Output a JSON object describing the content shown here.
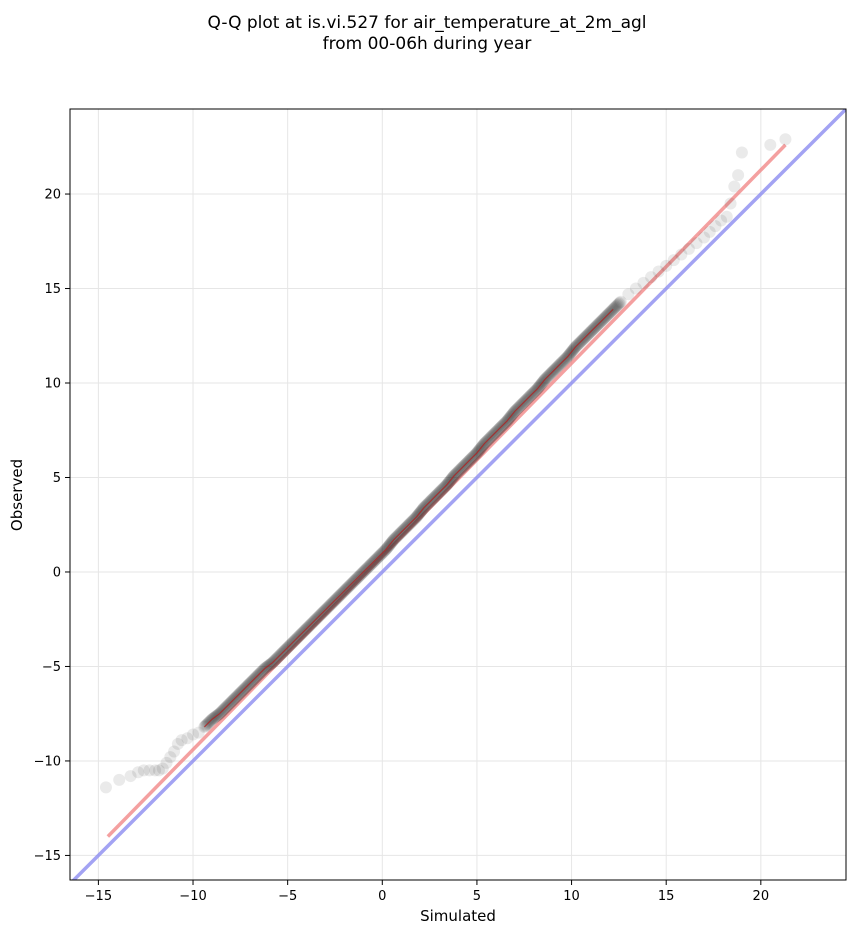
{
  "chart_data": {
    "type": "scatter",
    "title_line1": "Q-Q plot at is.vi.527 for air_temperature_at_2m_agl",
    "title_line2": "from 00-06h during year",
    "xlabel": "Simulated",
    "ylabel": "Observed",
    "xlim": [
      -16.5,
      24.5
    ],
    "ylim": [
      -16.3,
      24.5
    ],
    "xticks": [
      -15,
      -10,
      -5,
      0,
      5,
      10,
      15,
      20
    ],
    "yticks": [
      -15,
      -10,
      -5,
      0,
      5,
      10,
      15,
      20
    ],
    "xtick_labels": [
      "−15",
      "−10",
      "−5",
      "0",
      "5",
      "10",
      "15",
      "20"
    ],
    "ytick_labels": [
      "−15",
      "−10",
      "−5",
      "0",
      "5",
      "10",
      "15",
      "20"
    ],
    "grid": true,
    "colors": {
      "points": "#1a1a1a",
      "fit_line": "#f08080",
      "identity_line": "#8c8cf0",
      "inner_line": "#b02020",
      "grid": "#e6e6e6"
    },
    "identity_line": {
      "x": [
        -16.5,
        24.5
      ],
      "y": [
        -16.5,
        24.5
      ]
    },
    "fit_line": {
      "x": [
        -14.5,
        21.3
      ],
      "y": [
        -14.0,
        22.6
      ]
    },
    "points": {
      "x": [
        -14.6,
        -13.9,
        -13.3,
        -12.9,
        -12.6,
        -12.3,
        -12.0,
        -11.8,
        -11.6,
        -11.4,
        -11.2,
        -11.0,
        -10.8,
        -10.6,
        -10.3,
        -10.0,
        -9.7,
        -9.4,
        -9.0,
        -8.6,
        -8.2,
        -7.8,
        -7.4,
        -7.0,
        -6.6,
        -6.2,
        -5.8,
        -5.4,
        -5.0,
        -4.6,
        -4.2,
        -3.8,
        -3.4,
        -3.0,
        -2.6,
        -2.2,
        -1.8,
        -1.4,
        -1.0,
        -0.6,
        -0.2,
        0.2,
        0.6,
        1.0,
        1.4,
        1.8,
        2.2,
        2.6,
        3.0,
        3.4,
        3.8,
        4.2,
        4.6,
        5.0,
        5.4,
        5.8,
        6.2,
        6.6,
        7.0,
        7.4,
        7.8,
        8.2,
        8.6,
        9.0,
        9.4,
        9.8,
        10.2,
        10.6,
        11.0,
        11.4,
        11.8,
        12.2,
        12.6,
        13.0,
        13.4,
        13.8,
        14.2,
        14.6,
        15.0,
        15.4,
        15.8,
        16.2,
        16.6,
        17.0,
        17.3,
        17.6,
        17.9,
        18.2,
        18.4,
        18.6,
        18.8,
        19.0,
        20.5,
        21.3
      ],
      "y": [
        -11.4,
        -11.0,
        -10.8,
        -10.6,
        -10.5,
        -10.5,
        -10.5,
        -10.5,
        -10.4,
        -10.1,
        -9.8,
        -9.5,
        -9.1,
        -8.9,
        -8.8,
        -8.6,
        -8.5,
        -8.2,
        -7.8,
        -7.5,
        -7.1,
        -6.7,
        -6.3,
        -5.9,
        -5.5,
        -5.1,
        -4.8,
        -4.4,
        -4.0,
        -3.6,
        -3.2,
        -2.8,
        -2.4,
        -2.0,
        -1.6,
        -1.2,
        -0.8,
        -0.4,
        0.0,
        0.4,
        0.8,
        1.2,
        1.7,
        2.1,
        2.5,
        2.9,
        3.4,
        3.8,
        4.2,
        4.6,
        5.1,
        5.5,
        5.9,
        6.3,
        6.8,
        7.2,
        7.6,
        8.0,
        8.5,
        8.9,
        9.3,
        9.7,
        10.2,
        10.6,
        11.0,
        11.4,
        11.9,
        12.3,
        12.7,
        13.1,
        13.5,
        13.9,
        14.3,
        14.7,
        15.0,
        15.3,
        15.6,
        15.9,
        16.2,
        16.5,
        16.8,
        17.1,
        17.4,
        17.7,
        18.0,
        18.3,
        18.6,
        18.8,
        19.5,
        20.4,
        21.0,
        22.2,
        22.6,
        22.9
      ]
    }
  }
}
